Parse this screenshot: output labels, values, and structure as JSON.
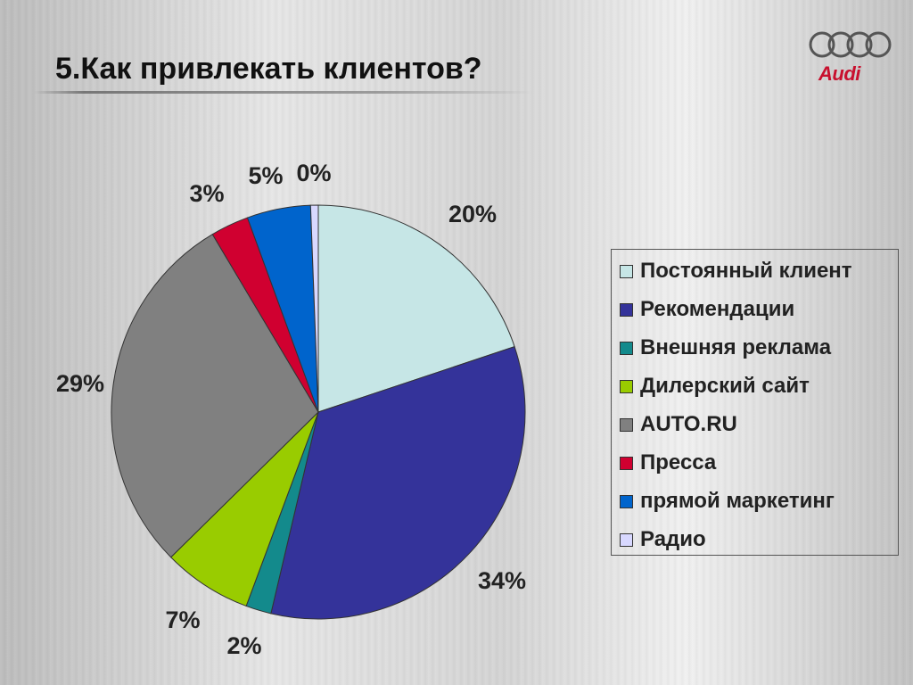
{
  "slide": {
    "title": "5.Как привлекать клиентов?",
    "logo_text": "Audi"
  },
  "chart_data": {
    "type": "pie",
    "title": "",
    "labels": [
      "Постоянный клиент",
      "Рекомендации",
      "Внешняя реклама",
      "Дилерский сайт",
      "AUTO.RU",
      "Пресса",
      "прямой маркетинг",
      "Радио"
    ],
    "values": [
      20,
      34,
      2,
      7,
      29,
      3,
      5,
      0
    ],
    "value_labels": [
      "20%",
      "34%",
      "2%",
      "7%",
      "29%",
      "3%",
      "5%",
      "0%"
    ],
    "colors": [
      "#c6e6e6",
      "#34339a",
      "#138a8c",
      "#99cc00",
      "#808080",
      "#d00030",
      "#0064cc",
      "#d8d8ff"
    ],
    "legend_position": "right"
  }
}
